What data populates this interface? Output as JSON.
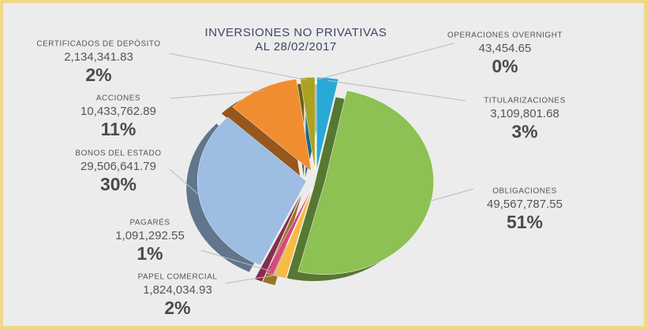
{
  "chart_data": {
    "type": "pie",
    "title": "INVERSIONES NO PRIVATIVAS",
    "subtitle": "AL 28/02/2017",
    "categories": [
      "OPERACIONES OVERNIGHT",
      "TITULARIZACIONES",
      "OBLIGACIONES",
      "PAPEL COMERCIAL",
      "PAGARÉS",
      "BONOS DEL ESTADO",
      "ACCIONES",
      "CERTIFICADOS DE DEPÓSITO"
    ],
    "values": [
      43454.65,
      3109801.68,
      49567787.55,
      1824034.93,
      1091292.55,
      29506641.79,
      10433762.89,
      2134341.83
    ],
    "value_labels": [
      "43,454.65",
      "3,109,801.68",
      "49,567,787.55",
      "1,824,034.93",
      "1,091,292.55",
      "29,506,641.79",
      "10,433,762.89",
      "2,134,341.83"
    ],
    "percent_labels": [
      "0%",
      "3%",
      "51%",
      "2%",
      "1%",
      "30%",
      "11%",
      "2%"
    ],
    "colors": [
      "#f3e612",
      "#2aa9d6",
      "#8dc153",
      "#f5bb45",
      "#d8487d",
      "#9dbde2",
      "#f18d31",
      "#aaa220"
    ]
  }
}
